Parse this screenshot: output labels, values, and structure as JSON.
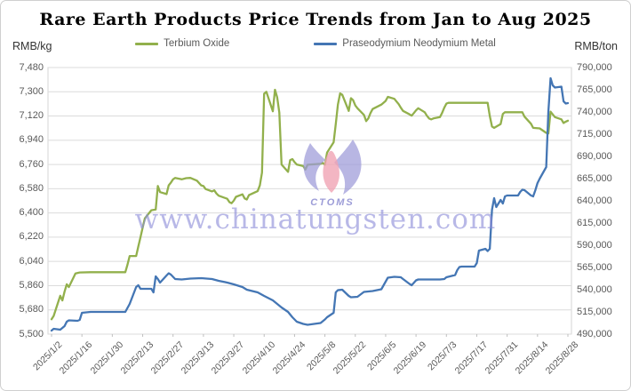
{
  "chart_data": {
    "type": "line",
    "title": "Rare Earth Products Price Trends from Jan to Aug 2025",
    "ylabel_left": "RMB/kg",
    "ylabel_right": "RMB/ton",
    "grid": "horizontal",
    "legend_position": "top",
    "left_axis": {
      "min": 5500,
      "max": 7480,
      "step": 180,
      "tick_labels": [
        "7,480",
        "7,300",
        "7,120",
        "6,940",
        "6,760",
        "6,580",
        "6,400",
        "6,220",
        "6,040",
        "5,860",
        "5,680",
        "5,500"
      ]
    },
    "right_axis": {
      "min": 490000,
      "max": 790000,
      "step": 25000,
      "tick_labels": [
        "790,000",
        "765,000",
        "740,000",
        "715,000",
        "690,000",
        "665,000",
        "640,000",
        "615,000",
        "590,000",
        "565,000",
        "540,000",
        "515,000",
        "490,000"
      ]
    },
    "x_axis": {
      "start_date": "2025/1/2",
      "end_date": "2025/8/28",
      "tick_labels": [
        "2025/1/2",
        "2025/1/16",
        "2025/1/30",
        "2025/2/13",
        "2025/2/27",
        "2025/3/13",
        "2025/3/27",
        "2025/4/10",
        "2025/4/24",
        "2025/5/8",
        "2025/5/22",
        "2025/6/5",
        "2025/6/19",
        "2025/7/3",
        "2025/7/17",
        "2025/7/31",
        "2025/8/14",
        "2025/8/28"
      ]
    },
    "series": [
      {
        "name": "Terbium Oxide",
        "color": "#92B04C",
        "axis": "left",
        "unit": "RMB/kg",
        "points": [
          [
            "1/2",
            5610
          ],
          [
            "1/3",
            5635
          ],
          [
            "1/6",
            5785
          ],
          [
            "1/7",
            5750
          ],
          [
            "1/8",
            5815
          ],
          [
            "1/9",
            5870
          ],
          [
            "1/10",
            5850
          ],
          [
            "1/13",
            5950
          ],
          [
            "1/15",
            5958
          ],
          [
            "1/20",
            5960
          ],
          [
            "2/5",
            5960
          ],
          [
            "2/6",
            6015
          ],
          [
            "2/7",
            6080
          ],
          [
            "2/10",
            6080
          ],
          [
            "2/11",
            6150
          ],
          [
            "2/12",
            6220
          ],
          [
            "2/13",
            6290
          ],
          [
            "2/14",
            6360
          ],
          [
            "2/17",
            6420
          ],
          [
            "2/19",
            6425
          ],
          [
            "2/20",
            6600
          ],
          [
            "2/21",
            6555
          ],
          [
            "2/24",
            6540
          ],
          [
            "2/25",
            6605
          ],
          [
            "2/26",
            6625
          ],
          [
            "2/27",
            6650
          ],
          [
            "2/28",
            6660
          ],
          [
            "3/3",
            6650
          ],
          [
            "3/5",
            6658
          ],
          [
            "3/7",
            6660
          ],
          [
            "3/10",
            6640
          ],
          [
            "3/12",
            6605
          ],
          [
            "3/13",
            6600
          ],
          [
            "3/14",
            6578
          ],
          [
            "3/17",
            6560
          ],
          [
            "3/18",
            6568
          ],
          [
            "3/19",
            6545
          ],
          [
            "3/20",
            6528
          ],
          [
            "3/24",
            6505
          ],
          [
            "3/25",
            6480
          ],
          [
            "3/26",
            6472
          ],
          [
            "3/27",
            6492
          ],
          [
            "3/28",
            6520
          ],
          [
            "3/31",
            6538
          ],
          [
            "4/1",
            6508
          ],
          [
            "4/2",
            6500
          ],
          [
            "4/3",
            6532
          ],
          [
            "4/7",
            6562
          ],
          [
            "4/8",
            6605
          ],
          [
            "4/9",
            6700
          ],
          [
            "4/10",
            7285
          ],
          [
            "4/11",
            7300
          ],
          [
            "4/14",
            7155
          ],
          [
            "4/15",
            7315
          ],
          [
            "4/16",
            7258
          ],
          [
            "4/17",
            7145
          ],
          [
            "4/18",
            6760
          ],
          [
            "4/21",
            6705
          ],
          [
            "4/22",
            6792
          ],
          [
            "4/23",
            6800
          ],
          [
            "4/24",
            6778
          ],
          [
            "4/25",
            6760
          ],
          [
            "4/28",
            6748
          ],
          [
            "4/29",
            6722
          ],
          [
            "4/30",
            6758
          ],
          [
            "5/6",
            6765
          ],
          [
            "5/7",
            6772
          ],
          [
            "5/8",
            6758
          ],
          [
            "5/9",
            6848
          ],
          [
            "5/12",
            6925
          ],
          [
            "5/13",
            7060
          ],
          [
            "5/14",
            7205
          ],
          [
            "5/15",
            7288
          ],
          [
            "5/16",
            7278
          ],
          [
            "5/19",
            7158
          ],
          [
            "5/20",
            7252
          ],
          [
            "5/21",
            7238
          ],
          [
            "5/22",
            7198
          ],
          [
            "5/23",
            7178
          ],
          [
            "5/26",
            7128
          ],
          [
            "5/27",
            7082
          ],
          [
            "5/28",
            7102
          ],
          [
            "5/29",
            7142
          ],
          [
            "5/30",
            7172
          ],
          [
            "6/3",
            7205
          ],
          [
            "6/5",
            7232
          ],
          [
            "6/6",
            7262
          ],
          [
            "6/9",
            7248
          ],
          [
            "6/10",
            7228
          ],
          [
            "6/11",
            7208
          ],
          [
            "6/12",
            7182
          ],
          [
            "6/13",
            7158
          ],
          [
            "6/16",
            7132
          ],
          [
            "6/17",
            7122
          ],
          [
            "6/18",
            7142
          ],
          [
            "6/19",
            7162
          ],
          [
            "6/20",
            7178
          ],
          [
            "6/23",
            7148
          ],
          [
            "6/24",
            7122
          ],
          [
            "6/25",
            7102
          ],
          [
            "6/26",
            7095
          ],
          [
            "6/27",
            7102
          ],
          [
            "6/30",
            7112
          ],
          [
            "7/1",
            7142
          ],
          [
            "7/2",
            7182
          ],
          [
            "7/3",
            7212
          ],
          [
            "7/4",
            7218
          ],
          [
            "7/22",
            7218
          ],
          [
            "7/23",
            7120
          ],
          [
            "7/24",
            7042
          ],
          [
            "7/25",
            7032
          ],
          [
            "7/28",
            7060
          ],
          [
            "7/29",
            7135
          ],
          [
            "7/30",
            7148
          ],
          [
            "8/7",
            7148
          ],
          [
            "8/8",
            7115
          ],
          [
            "8/11",
            7062
          ],
          [
            "8/12",
            7032
          ],
          [
            "8/15",
            7028
          ],
          [
            "8/18",
            6995
          ],
          [
            "8/19",
            6990
          ],
          [
            "8/20",
            7152
          ],
          [
            "8/21",
            7132
          ],
          [
            "8/22",
            7112
          ],
          [
            "8/25",
            7095
          ],
          [
            "8/26",
            7068
          ],
          [
            "8/27",
            7078
          ],
          [
            "8/28",
            7085
          ]
        ]
      },
      {
        "name": "Praseodymium Neodymium Metal",
        "color": "#4476B4",
        "axis": "right",
        "unit": "RMB/ton",
        "points": [
          [
            "1/2",
            494000
          ],
          [
            "1/3",
            496000
          ],
          [
            "1/6",
            495000
          ],
          [
            "1/8",
            499000
          ],
          [
            "1/9",
            504000
          ],
          [
            "1/10",
            505500
          ],
          [
            "1/14",
            505000
          ],
          [
            "1/15",
            506000
          ],
          [
            "1/16",
            514000
          ],
          [
            "1/20",
            515000
          ],
          [
            "2/5",
            515000
          ],
          [
            "2/7",
            524000
          ],
          [
            "2/10",
            543000
          ],
          [
            "2/11",
            545000
          ],
          [
            "2/12",
            541000
          ],
          [
            "2/17",
            541000
          ],
          [
            "2/18",
            537000
          ],
          [
            "2/19",
            555000
          ],
          [
            "2/20",
            552000
          ],
          [
            "2/21",
            548000
          ],
          [
            "2/24",
            556000
          ],
          [
            "2/25",
            558500
          ],
          [
            "2/26",
            557000
          ],
          [
            "2/28",
            552000
          ],
          [
            "3/3",
            551500
          ],
          [
            "3/7",
            552500
          ],
          [
            "3/12",
            553000
          ],
          [
            "3/17",
            552000
          ],
          [
            "3/20",
            550000
          ],
          [
            "3/24",
            548000
          ],
          [
            "3/27",
            546000
          ],
          [
            "3/31",
            543000
          ],
          [
            "4/2",
            540000
          ],
          [
            "4/7",
            537000
          ],
          [
            "4/10",
            533000
          ],
          [
            "4/14",
            528000
          ],
          [
            "4/16",
            524000
          ],
          [
            "4/18",
            520000
          ],
          [
            "4/21",
            515000
          ],
          [
            "4/23",
            509000
          ],
          [
            "4/25",
            504000
          ],
          [
            "4/28",
            501500
          ],
          [
            "4/30",
            500500
          ],
          [
            "5/6",
            502500
          ],
          [
            "5/8",
            506500
          ],
          [
            "5/9",
            509000
          ],
          [
            "5/12",
            514000
          ],
          [
            "5/13",
            537000
          ],
          [
            "5/14",
            539500
          ],
          [
            "5/16",
            540000
          ],
          [
            "5/19",
            533000
          ],
          [
            "5/20",
            531500
          ],
          [
            "5/23",
            532000
          ],
          [
            "5/26",
            537500
          ],
          [
            "5/28",
            538000
          ],
          [
            "5/30",
            538500
          ],
          [
            "6/3",
            540500
          ],
          [
            "6/6",
            553500
          ],
          [
            "6/9",
            554500
          ],
          [
            "6/12",
            554000
          ],
          [
            "6/13",
            552000
          ],
          [
            "6/16",
            546500
          ],
          [
            "6/17",
            545000
          ],
          [
            "6/19",
            550500
          ],
          [
            "6/20",
            551500
          ],
          [
            "6/30",
            551500
          ],
          [
            "7/2",
            552000
          ],
          [
            "7/3",
            554000
          ],
          [
            "7/7",
            556500
          ],
          [
            "7/8",
            562000
          ],
          [
            "7/9",
            565500
          ],
          [
            "7/10",
            566000
          ],
          [
            "7/16",
            566000
          ],
          [
            "7/17",
            570000
          ],
          [
            "7/18",
            584000
          ],
          [
            "7/21",
            586000
          ],
          [
            "7/22",
            583500
          ],
          [
            "7/23",
            586000
          ],
          [
            "7/24",
            630000
          ],
          [
            "7/25",
            643000
          ],
          [
            "7/26",
            633000
          ],
          [
            "7/28",
            641000
          ],
          [
            "7/29",
            637000
          ],
          [
            "7/30",
            645000
          ],
          [
            "7/31",
            646000
          ],
          [
            "8/5",
            646000
          ],
          [
            "8/6",
            650000
          ],
          [
            "8/7",
            652500
          ],
          [
            "8/8",
            652000
          ],
          [
            "8/11",
            646000
          ],
          [
            "8/12",
            645000
          ],
          [
            "8/13",
            652000
          ],
          [
            "8/14",
            660000
          ],
          [
            "8/15",
            665000
          ],
          [
            "8/18",
            678000
          ],
          [
            "8/19",
            740000
          ],
          [
            "8/20",
            778000
          ],
          [
            "8/21",
            770000
          ],
          [
            "8/22",
            767500
          ],
          [
            "8/25",
            768500
          ],
          [
            "8/26",
            752000
          ],
          [
            "8/27",
            749500
          ],
          [
            "8/28",
            750000
          ]
        ]
      }
    ]
  },
  "watermark": {
    "url_text": "www.chinatungsten.com",
    "logo_text": "CTOMS",
    "logo_lavender": "#9d9ad8",
    "logo_pink": "#f0a4b4"
  },
  "style": {
    "gridline_color": "#dbdbdb",
    "border_color": "#d6d6d6",
    "tick_text_color": "#595959"
  }
}
